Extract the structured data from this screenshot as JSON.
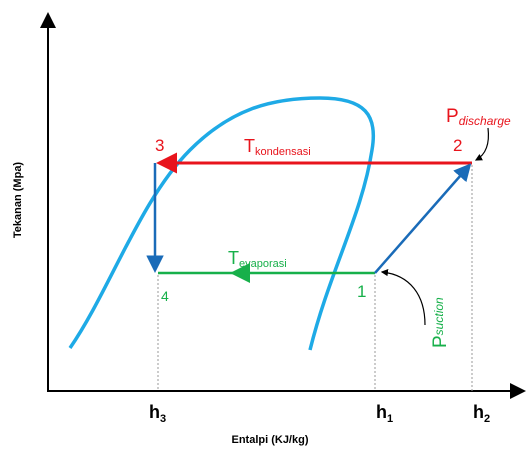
{
  "axes": {
    "y_label": "Tekanan (Mpa)",
    "x_label": "Entalpi (KJ/kg)"
  },
  "h_labels": [
    {
      "main": "h",
      "sub": "3"
    },
    {
      "main": "h",
      "sub": "1"
    },
    {
      "main": "h",
      "sub": "2"
    }
  ],
  "points": [
    "1",
    "2",
    "3",
    "4"
  ],
  "condensation": {
    "main": "T",
    "sub": "kondensasi"
  },
  "evaporation": {
    "main": "T",
    "sub": "evaporasi"
  },
  "discharge": {
    "main": "P",
    "sub": "discharge"
  },
  "suction": {
    "main": "P",
    "sub": "suction"
  }
}
